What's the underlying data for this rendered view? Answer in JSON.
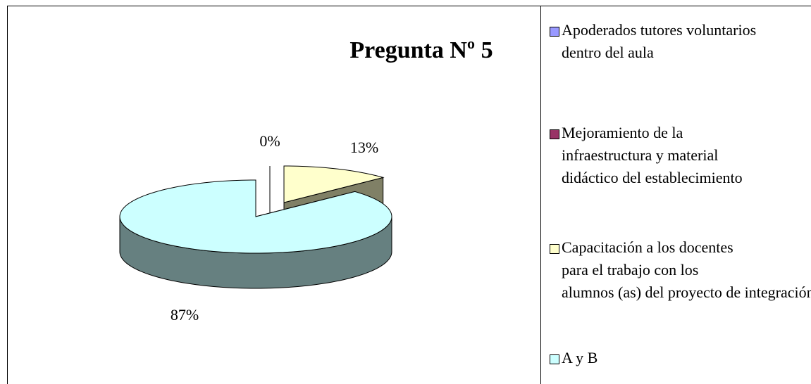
{
  "chart_data": {
    "type": "pie",
    "title": "Pregunta Nº 5",
    "categories": [
      "Apoderados tutores voluntarios dentro del aula",
      "Mejoramiento de la infraestructura y material didáctico del establecimiento",
      "Capacitación a los docentes para el trabajo con los alumnos (as) del proyecto de integración",
      "A y B"
    ],
    "values": [
      0,
      0,
      13,
      87
    ],
    "value_labels": [
      "0%",
      null,
      "13%",
      "87%"
    ],
    "colors": [
      "#9999ff",
      "#993366",
      "#ffffcc",
      "#ccffff"
    ],
    "legend": "right"
  }
}
